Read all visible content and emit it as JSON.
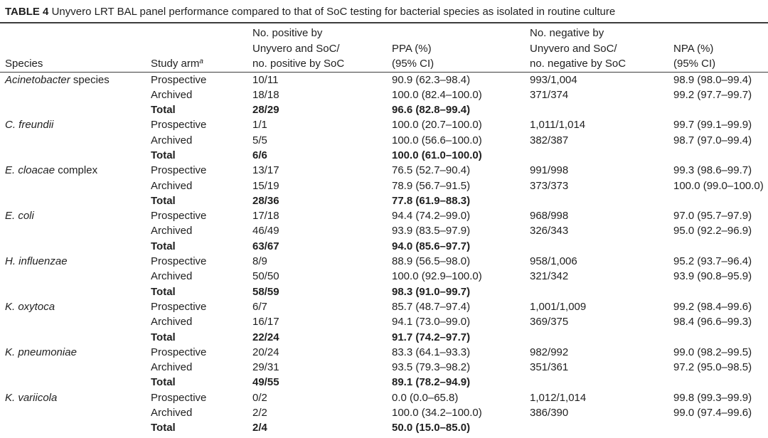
{
  "title": {
    "label": "TABLE 4",
    "text": "Unyvero LRT BAL panel performance compared to that of SoC testing for bacterial species as isolated in routine culture"
  },
  "header": {
    "species": "Species",
    "study_arm": "Study arm",
    "study_arm_footnote": "a",
    "positive": [
      "No. positive by",
      "Unyvero and SoC/",
      "no. positive by SoC"
    ],
    "ppa": [
      "PPA (%)",
      "(95% CI)"
    ],
    "negative": [
      "No. negative by",
      "Unyvero and SoC/",
      "no. negative by SoC"
    ],
    "npa": [
      "NPA (%)",
      "(95% CI)"
    ]
  },
  "groups": [
    {
      "species": {
        "italic": "Acinetobacter",
        "plain": "species"
      },
      "prospective": {
        "arm": "Prospective",
        "positive": "10/11",
        "ppa": "90.9 (62.3–98.4)",
        "negative": "993/1,004",
        "npa": "98.9 (98.0–99.4)"
      },
      "archived": {
        "arm": "Archived",
        "positive": "18/18",
        "ppa": "100.0 (82.4–100.0)",
        "negative": "371/374",
        "npa": "99.2 (97.7–99.7)"
      },
      "total": {
        "arm": "Total",
        "positive": "28/29",
        "ppa": "96.6 (82.8–99.4)"
      }
    },
    {
      "species": {
        "italic": "C. freundii"
      },
      "prospective": {
        "arm": "Prospective",
        "positive": "1/1",
        "ppa": "100.0 (20.7–100.0)",
        "negative": "1,011/1,014",
        "npa": "99.7 (99.1–99.9)"
      },
      "archived": {
        "arm": "Archived",
        "positive": "5/5",
        "ppa": "100.0 (56.6–100.0)",
        "negative": "382/387",
        "npa": "98.7 (97.0–99.4)"
      },
      "total": {
        "arm": "Total",
        "positive": "6/6",
        "ppa": "100.0 (61.0–100.0)"
      }
    },
    {
      "species": {
        "italic": "E. cloacae",
        "plain": "complex"
      },
      "prospective": {
        "arm": "Prospective",
        "positive": "13/17",
        "ppa": "76.5 (52.7–90.4)",
        "negative": "991/998",
        "npa": "99.3 (98.6–99.7)"
      },
      "archived": {
        "arm": "Archived",
        "positive": "15/19",
        "ppa": "78.9 (56.7–91.5)",
        "negative": "373/373",
        "npa": "100.0 (99.0–100.0)"
      },
      "total": {
        "arm": "Total",
        "positive": "28/36",
        "ppa": "77.8 (61.9–88.3)"
      }
    },
    {
      "species": {
        "italic": "E. coli"
      },
      "prospective": {
        "arm": "Prospective",
        "positive": "17/18",
        "ppa": "94.4 (74.2–99.0)",
        "negative": "968/998",
        "npa": "97.0 (95.7–97.9)"
      },
      "archived": {
        "arm": "Archived",
        "positive": "46/49",
        "ppa": "93.9 (83.5–97.9)",
        "negative": "326/343",
        "npa": "95.0 (92.2–96.9)"
      },
      "total": {
        "arm": "Total",
        "positive": "63/67",
        "ppa": "94.0 (85.6–97.7)"
      }
    },
    {
      "species": {
        "italic": "H. influenzae"
      },
      "prospective": {
        "arm": "Prospective",
        "positive": "8/9",
        "ppa": "88.9 (56.5–98.0)",
        "negative": "958/1,006",
        "npa": "95.2 (93.7–96.4)"
      },
      "archived": {
        "arm": "Archived",
        "positive": "50/50",
        "ppa": "100.0 (92.9–100.0)",
        "negative": "321/342",
        "npa": "93.9 (90.8–95.9)"
      },
      "total": {
        "arm": "Total",
        "positive": "58/59",
        "ppa": "98.3 (91.0–99.7)"
      }
    },
    {
      "species": {
        "italic": "K. oxytoca"
      },
      "prospective": {
        "arm": "Prospective",
        "positive": "6/7",
        "ppa": "85.7 (48.7–97.4)",
        "negative": "1,001/1,009",
        "npa": "99.2 (98.4–99.6)"
      },
      "archived": {
        "arm": "Archived",
        "positive": "16/17",
        "ppa": "94.1 (73.0–99.0)",
        "negative": "369/375",
        "npa": "98.4 (96.6–99.3)"
      },
      "total": {
        "arm": "Total",
        "positive": "22/24",
        "ppa": "91.7 (74.2–97.7)"
      }
    },
    {
      "species": {
        "italic": "K. pneumoniae"
      },
      "prospective": {
        "arm": "Prospective",
        "positive": "20/24",
        "ppa": "83.3 (64.1–93.3)",
        "negative": "982/992",
        "npa": "99.0 (98.2–99.5)"
      },
      "archived": {
        "arm": "Archived",
        "positive": "29/31",
        "ppa": "93.5 (79.3–98.2)",
        "negative": "351/361",
        "npa": "97.2 (95.0–98.5)"
      },
      "total": {
        "arm": "Total",
        "positive": "49/55",
        "ppa": "89.1 (78.2–94.9)"
      }
    },
    {
      "species": {
        "italic": "K. variicola"
      },
      "prospective": {
        "arm": "Prospective",
        "positive": "0/2",
        "ppa": "0.0 (0.0–65.8)",
        "negative": "1,012/1,014",
        "npa": "99.8 (99.3–99.9)"
      },
      "archived": {
        "arm": "Archived",
        "positive": "2/2",
        "ppa": "100.0 (34.2–100.0)",
        "negative": "386/390",
        "npa": "99.0 (97.4–99.6)"
      },
      "total": {
        "arm": "Total",
        "positive": "2/4",
        "ppa": "50.0 (15.0–85.0)"
      }
    }
  ]
}
